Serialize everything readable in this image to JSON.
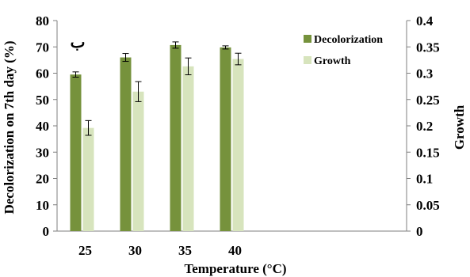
{
  "chart_data": {
    "type": "bar",
    "categories": [
      "25",
      "30",
      "35",
      "40"
    ],
    "xlabel": "Temperature (°C)",
    "ylabel_left": "Decolorization on 7th day (%)",
    "ylabel_right": "Growth",
    "annotation": "ب",
    "y_left": {
      "min": 0,
      "max": 80,
      "ticks": [
        "0",
        "10",
        "20",
        "30",
        "40",
        "50",
        "60",
        "70",
        "80"
      ]
    },
    "y_right": {
      "min": 0,
      "max": 0.4,
      "ticks": [
        "0",
        "0.05",
        "0.1",
        "0.15",
        "0.2",
        "0.25",
        "0.3",
        "0.35",
        "0.4"
      ]
    },
    "grid": false,
    "legend_position": "top-right",
    "series": [
      {
        "name": "Decolorization",
        "axis": "left",
        "color": "#76923c",
        "values": [
          59.5,
          66,
          70.7,
          69.8
        ],
        "errors": [
          1,
          1.5,
          1.2,
          0.6
        ]
      },
      {
        "name": "Growth",
        "axis": "right",
        "color": "#d7e4bd",
        "values": [
          0.196,
          0.265,
          0.313,
          0.327
        ],
        "errors": [
          0.014,
          0.019,
          0.016,
          0.011
        ]
      }
    ]
  }
}
